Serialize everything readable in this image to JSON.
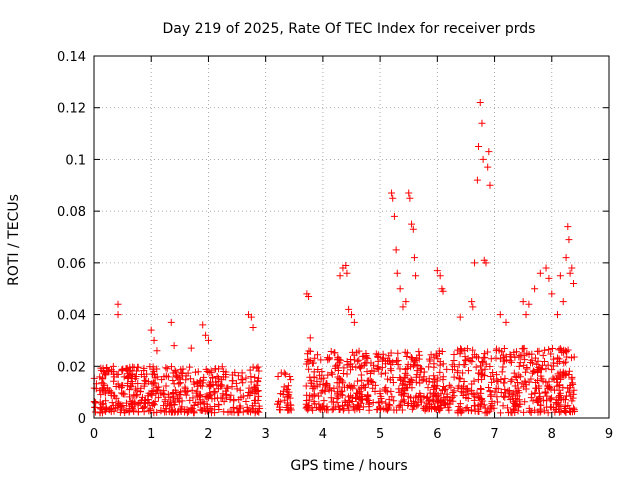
{
  "chart_data": {
    "type": "scatter",
    "title": "Day 219 of 2025, Rate Of TEC Index for receiver prds",
    "xlabel": "GPS time / hours",
    "ylabel": "ROTI / TECUs",
    "xlim": [
      0,
      9
    ],
    "ylim": [
      0,
      0.14
    ],
    "xticks": [
      "0",
      "1",
      "2",
      "3",
      "4",
      "5",
      "6",
      "7",
      "8",
      "9"
    ],
    "yticks": [
      "0",
      "0.02",
      "0.04",
      "0.06",
      "0.08",
      "0.1",
      "0.12",
      "0.14"
    ],
    "grid": true,
    "marker": "+",
    "color": "#ff0000",
    "background_clusters": [
      {
        "x_start": 0.0,
        "x_end": 2.9,
        "y_low": 0.002,
        "y_high": 0.02,
        "count": 520
      },
      {
        "x_start": 3.2,
        "x_end": 3.45,
        "y_low": 0.003,
        "y_high": 0.019,
        "count": 40
      },
      {
        "x_start": 3.7,
        "x_end": 6.3,
        "y_low": 0.003,
        "y_high": 0.026,
        "count": 520
      },
      {
        "x_start": 6.35,
        "x_end": 8.4,
        "y_low": 0.002,
        "y_high": 0.027,
        "count": 420
      }
    ],
    "series": [
      {
        "name": "ROTI",
        "x": [
          0.42,
          0.42,
          1.0,
          1.05,
          1.1,
          1.35,
          1.4,
          1.7,
          1.9,
          1.95,
          2.0,
          2.7,
          2.75,
          2.78,
          3.72,
          3.75,
          3.78,
          4.3,
          4.35,
          4.4,
          4.42,
          4.45,
          4.5,
          4.55,
          5.2,
          5.22,
          5.25,
          5.28,
          5.3,
          5.35,
          5.4,
          5.45,
          5.5,
          5.52,
          5.55,
          5.58,
          5.6,
          5.62,
          6.0,
          6.05,
          6.08,
          6.1,
          6.4,
          6.6,
          6.62,
          6.65,
          6.7,
          6.72,
          6.75,
          6.78,
          6.8,
          6.82,
          6.85,
          6.88,
          6.9,
          6.92,
          7.1,
          7.2,
          7.5,
          7.55,
          7.6,
          7.7,
          7.8,
          7.9,
          7.95,
          8.0,
          8.1,
          8.15,
          8.2,
          8.25,
          8.28,
          8.3,
          8.32,
          8.35,
          8.38
        ],
        "y": [
          0.044,
          0.04,
          0.034,
          0.03,
          0.026,
          0.037,
          0.028,
          0.027,
          0.036,
          0.032,
          0.03,
          0.04,
          0.039,
          0.035,
          0.048,
          0.047,
          0.031,
          0.055,
          0.058,
          0.059,
          0.056,
          0.042,
          0.04,
          0.037,
          0.087,
          0.085,
          0.078,
          0.065,
          0.056,
          0.05,
          0.043,
          0.045,
          0.087,
          0.085,
          0.075,
          0.073,
          0.062,
          0.055,
          0.057,
          0.055,
          0.05,
          0.049,
          0.039,
          0.045,
          0.043,
          0.06,
          0.092,
          0.105,
          0.122,
          0.114,
          0.1,
          0.061,
          0.06,
          0.097,
          0.103,
          0.09,
          0.04,
          0.037,
          0.045,
          0.04,
          0.044,
          0.05,
          0.056,
          0.058,
          0.054,
          0.048,
          0.04,
          0.055,
          0.045,
          0.062,
          0.074,
          0.069,
          0.056,
          0.058,
          0.052
        ]
      }
    ]
  }
}
